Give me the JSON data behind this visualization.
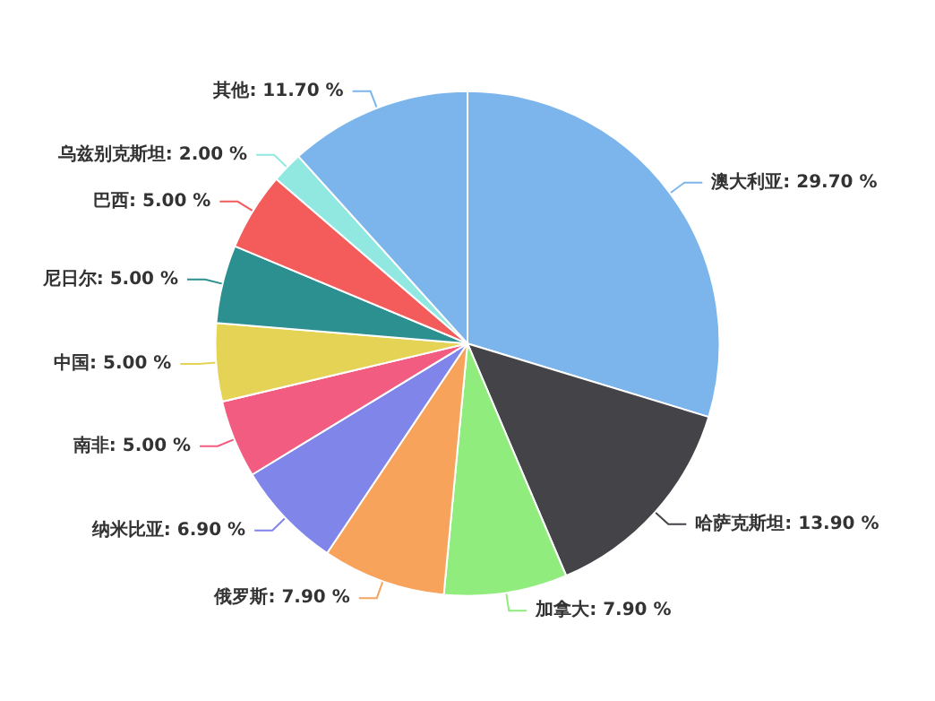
{
  "chart_data": {
    "type": "pie",
    "categories": [
      "澳大利亚",
      "哈萨克斯坦",
      "加拿大",
      "俄罗斯",
      "纳米比亚",
      "南非",
      "中国",
      "尼日尔",
      "巴西",
      "乌兹别克斯坦",
      "其他"
    ],
    "values": [
      29.7,
      13.9,
      7.9,
      7.9,
      6.9,
      5.0,
      5.0,
      5.0,
      5.0,
      2.0,
      11.7
    ],
    "value_labels": [
      "29.70 %",
      "13.90 %",
      "7.90 %",
      "7.90 %",
      "6.90 %",
      "5.00 %",
      "5.00 %",
      "5.00 %",
      "5.00 %",
      "2.00 %",
      "11.70 %"
    ],
    "colors": [
      "#7cb5ec",
      "#434348",
      "#90ed7d",
      "#f7a35c",
      "#8085e9",
      "#f15c80",
      "#e4d354",
      "#2b908f",
      "#f45b5b",
      "#91e8e1",
      "#7cb5ec"
    ],
    "legend": false
  }
}
